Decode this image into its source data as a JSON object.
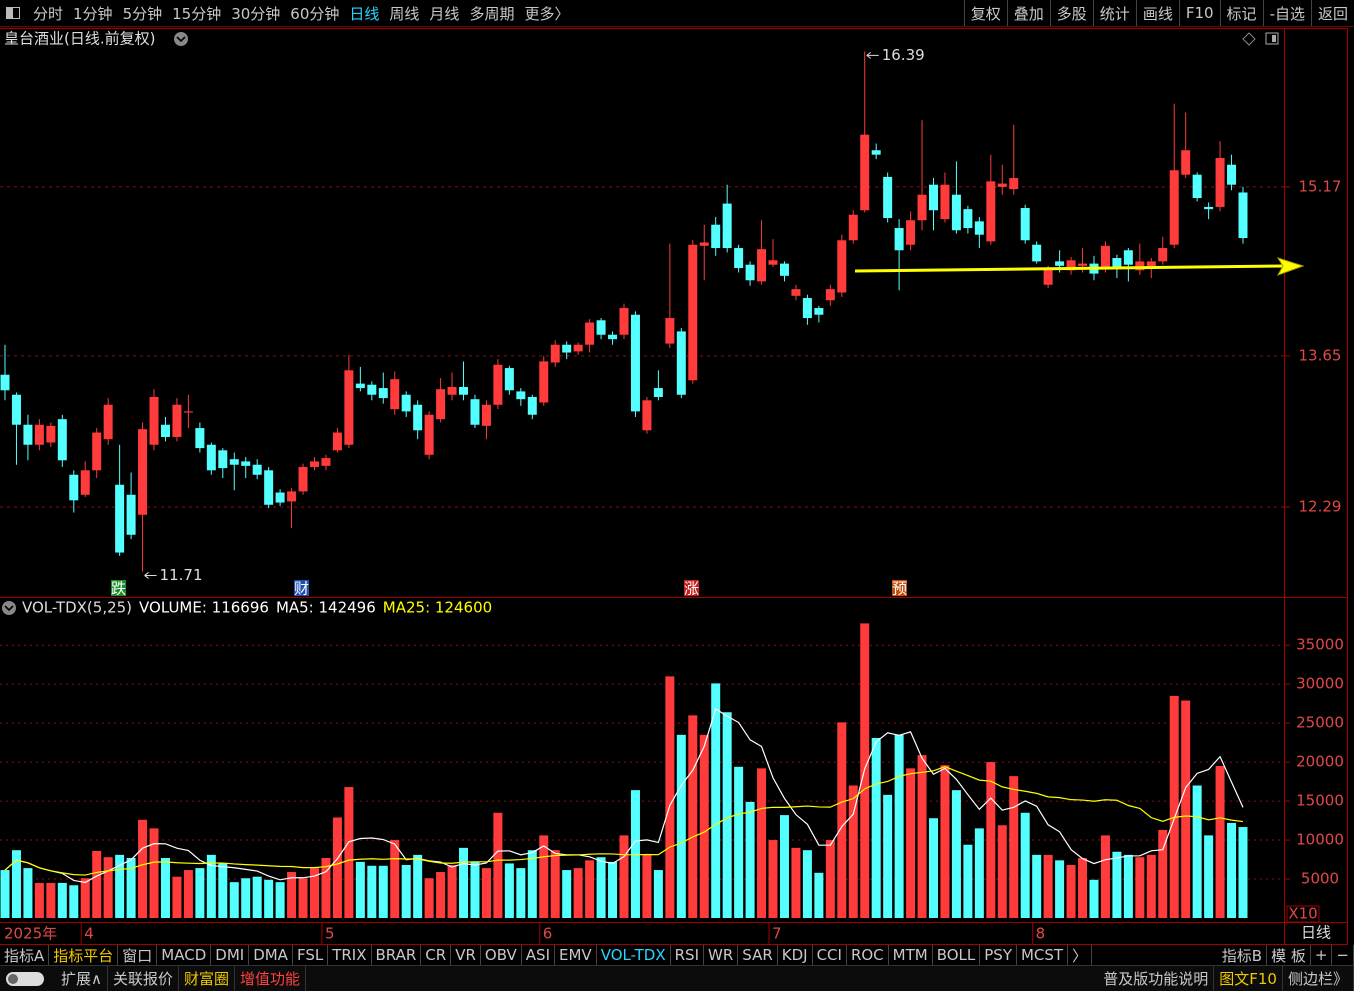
{
  "toolbar": {
    "periods": [
      {
        "label": "分时"
      },
      {
        "label": "1分钟"
      },
      {
        "label": "5分钟"
      },
      {
        "label": "15分钟"
      },
      {
        "label": "30分钟"
      },
      {
        "label": "60分钟"
      },
      {
        "label": "日线",
        "selected": true
      },
      {
        "label": "周线"
      },
      {
        "label": "月线"
      },
      {
        "label": "多周期"
      },
      {
        "label": "更多〉"
      }
    ],
    "tools": [
      "复权",
      "叠加",
      "多股",
      "统计",
      "画线",
      "F10",
      "标记",
      "-自选",
      "返回"
    ]
  },
  "stock_title": "皇台酒业(日线.前复权)",
  "event_markers": [
    "跌",
    "财",
    "涨",
    "预"
  ],
  "chart_data": [
    {
      "type": "candlestick",
      "up_color": "#ff3b3b",
      "down_color": "#54ffff",
      "ylim": [
        11.48,
        16.6
      ],
      "yticks": [
        12.29,
        13.65,
        15.17
      ],
      "grid": true,
      "open": [
        13.48,
        13.3,
        13.03,
        12.85,
        12.87,
        13.08,
        12.58,
        12.4,
        12.62,
        12.9,
        12.49,
        12.4,
        12.22,
        12.85,
        13.03,
        12.92,
        13.14,
        13.0,
        12.85,
        12.8,
        12.72,
        12.7,
        12.67,
        12.62,
        12.42,
        12.34,
        12.43,
        12.65,
        12.66,
        12.8,
        12.85,
        13.4,
        13.39,
        13.36,
        13.17,
        13.3,
        13.21,
        12.76,
        13.08,
        13.3,
        13.37,
        13.26,
        13.02,
        13.21,
        13.54,
        13.33,
        13.28,
        13.23,
        13.59,
        13.75,
        13.69,
        13.75,
        13.97,
        13.84,
        13.84,
        14.02,
        12.98,
        13.36,
        13.76,
        13.87,
        13.43,
        14.64,
        14.83,
        15.02,
        14.62,
        14.47,
        14.32,
        14.47,
        14.48,
        14.19,
        14.17,
        14.08,
        14.15,
        14.22,
        14.69,
        14.96,
        15.5,
        15.26,
        14.8,
        14.65,
        14.87,
        15.19,
        14.88,
        15.1,
        14.97,
        14.86,
        14.68,
        15.17,
        15.15,
        14.98,
        14.65,
        14.29,
        14.5,
        14.42,
        14.46,
        14.48,
        14.44,
        14.53,
        14.6,
        14.42,
        14.44,
        14.5,
        14.65,
        15.28,
        15.28,
        14.99,
        14.99,
        15.37,
        15.12
      ],
      "high": [
        13.75,
        13.32,
        13.12,
        13.08,
        13.05,
        13.12,
        12.62,
        12.7,
        13.0,
        13.27,
        12.85,
        12.6,
        13.05,
        13.35,
        13.1,
        13.27,
        13.3,
        13.05,
        12.87,
        12.82,
        12.78,
        12.74,
        12.72,
        12.65,
        12.45,
        12.46,
        12.68,
        12.74,
        12.76,
        13.0,
        13.66,
        13.55,
        13.42,
        13.5,
        13.51,
        13.33,
        13.25,
        13.15,
        13.45,
        13.5,
        13.6,
        13.3,
        13.25,
        13.62,
        13.56,
        13.36,
        13.3,
        13.65,
        13.79,
        13.78,
        13.77,
        13.98,
        13.99,
        13.87,
        14.12,
        14.05,
        13.28,
        13.52,
        14.66,
        13.9,
        14.69,
        14.83,
        14.9,
        15.19,
        14.65,
        14.5,
        14.87,
        14.7,
        14.5,
        14.29,
        14.2,
        14.1,
        14.29,
        14.74,
        14.96,
        16.39,
        15.56,
        15.3,
        14.88,
        14.95,
        15.77,
        15.25,
        15.3,
        15.4,
        15.0,
        14.9,
        15.46,
        15.37,
        15.73,
        15.01,
        14.68,
        14.46,
        14.6,
        14.54,
        14.62,
        14.55,
        14.68,
        14.56,
        14.62,
        14.66,
        14.53,
        14.72,
        15.92,
        15.84,
        15.3,
        15.03,
        15.58,
        15.46,
        15.17
      ],
      "low": [
        13.25,
        12.67,
        12.71,
        12.8,
        12.83,
        12.65,
        12.24,
        12.38,
        12.55,
        12.85,
        11.85,
        12.0,
        11.71,
        12.8,
        12.88,
        12.88,
        13.0,
        12.78,
        12.58,
        12.55,
        12.44,
        12.55,
        12.54,
        12.28,
        12.3,
        12.1,
        12.4,
        12.62,
        12.62,
        12.78,
        12.82,
        13.33,
        13.25,
        13.22,
        13.12,
        13.1,
        12.9,
        12.72,
        13.05,
        13.25,
        13.25,
        13.0,
        12.9,
        13.17,
        13.3,
        13.2,
        13.08,
        13.2,
        13.55,
        13.62,
        13.66,
        13.68,
        13.8,
        13.75,
        13.8,
        13.1,
        12.95,
        13.25,
        13.72,
        13.27,
        13.4,
        14.33,
        14.55,
        14.58,
        14.4,
        14.28,
        14.29,
        14.45,
        14.32,
        14.15,
        13.93,
        13.95,
        14.1,
        14.18,
        14.66,
        14.94,
        15.42,
        14.85,
        14.24,
        14.6,
        14.78,
        14.78,
        14.85,
        14.75,
        14.75,
        14.62,
        14.65,
        15.1,
        15.1,
        14.66,
        14.48,
        14.26,
        14.4,
        14.38,
        14.4,
        14.33,
        14.4,
        14.35,
        14.32,
        14.38,
        14.35,
        14.47,
        14.62,
        15.25,
        15.04,
        14.88,
        14.95,
        15.14,
        14.66
      ],
      "close": [
        13.34,
        13.03,
        12.85,
        13.03,
        13.02,
        12.71,
        12.35,
        12.62,
        12.96,
        13.21,
        11.88,
        12.04,
        12.99,
        13.28,
        12.92,
        13.21,
        13.15,
        12.82,
        12.62,
        12.64,
        12.67,
        12.66,
        12.58,
        12.31,
        12.33,
        12.43,
        12.65,
        12.7,
        12.73,
        12.96,
        13.52,
        13.36,
        13.3,
        13.27,
        13.44,
        13.15,
        12.98,
        13.12,
        13.35,
        13.37,
        13.3,
        13.03,
        13.21,
        13.57,
        13.34,
        13.26,
        13.12,
        13.6,
        13.75,
        13.68,
        13.75,
        13.95,
        13.84,
        13.8,
        14.08,
        13.15,
        13.25,
        13.28,
        13.99,
        13.3,
        14.65,
        14.67,
        14.62,
        14.62,
        14.44,
        14.33,
        14.61,
        14.51,
        14.37,
        14.25,
        13.99,
        14.02,
        14.25,
        14.69,
        14.92,
        15.64,
        15.46,
        14.89,
        14.6,
        14.87,
        15.1,
        14.96,
        15.19,
        14.78,
        14.8,
        14.74,
        15.22,
        15.2,
        15.25,
        14.69,
        14.5,
        14.43,
        14.46,
        14.51,
        14.48,
        14.39,
        14.64,
        14.44,
        14.47,
        14.5,
        14.5,
        14.62,
        15.32,
        15.5,
        15.07,
        14.97,
        15.43,
        15.19,
        14.71
      ]
    },
    {
      "type": "bar",
      "legend": [
        {
          "text": "VOL-TDX(5,25)",
          "color": "#dddddd"
        },
        {
          "text": "VOLUME: 116696",
          "color": "#ffffff"
        },
        {
          "text": "MA5: 142496",
          "color": "#ffffff"
        },
        {
          "text": "MA25: 124600",
          "color": "#ffff00"
        }
      ],
      "ma_periods": [
        5,
        25
      ],
      "ylim": [
        0,
        40800
      ],
      "yticks": [
        5000,
        10000,
        15000,
        20000,
        25000,
        30000,
        35000
      ],
      "grid": true,
      "scale_label": "X10",
      "year_label": "2025年",
      "period_label": "日线",
      "categories": [
        null,
        null,
        null,
        null,
        null,
        null,
        null,
        "4",
        null,
        null,
        null,
        null,
        null,
        null,
        null,
        null,
        null,
        null,
        null,
        null,
        null,
        null,
        null,
        null,
        null,
        null,
        null,
        null,
        "5",
        null,
        null,
        null,
        null,
        null,
        null,
        null,
        null,
        null,
        null,
        null,
        null,
        null,
        null,
        null,
        null,
        null,
        null,
        "6",
        null,
        null,
        null,
        null,
        null,
        null,
        null,
        null,
        null,
        null,
        null,
        null,
        null,
        null,
        null,
        null,
        null,
        null,
        null,
        "7",
        null,
        null,
        null,
        null,
        null,
        null,
        null,
        null,
        null,
        null,
        null,
        null,
        null,
        null,
        null,
        null,
        null,
        null,
        null,
        null,
        null,
        null,
        "8",
        null,
        null,
        null,
        null,
        null,
        null,
        null,
        null,
        null,
        null,
        null,
        null,
        null,
        null,
        null,
        null,
        null,
        null
      ],
      "values": [
        6150,
        8700,
        6400,
        4500,
        4500,
        4500,
        4200,
        5100,
        8600,
        7800,
        8100,
        7700,
        12600,
        11500,
        7700,
        5300,
        6150,
        6400,
        8100,
        7000,
        4600,
        5100,
        5300,
        4900,
        4600,
        5900,
        5100,
        6400,
        7700,
        12900,
        16800,
        7200,
        6700,
        6700,
        10000,
        6800,
        8100,
        5100,
        5900,
        6800,
        9000,
        7200,
        6400,
        13500,
        7000,
        6400,
        8700,
        10600,
        8700,
        6150,
        6400,
        7400,
        7800,
        7200,
        10600,
        16400,
        8100,
        6150,
        31000,
        23500,
        26000,
        23500,
        30100,
        26400,
        19400,
        14900,
        19200,
        10000,
        13200,
        9000,
        8700,
        5800,
        10000,
        25100,
        17000,
        37800,
        23100,
        15800,
        23500,
        19200,
        20900,
        12800,
        19600,
        16400,
        9400,
        11500,
        20000,
        11900,
        18200,
        13500,
        8100,
        8100,
        7400,
        6800,
        7700,
        4900,
        10600,
        8500,
        8100,
        7800,
        8100,
        11300,
        28500,
        27900,
        17000,
        10600,
        19500,
        12200,
        11670
      ]
    }
  ],
  "indicator_bar": {
    "left": [
      {
        "label": "指标A"
      },
      {
        "label": "指标平台",
        "color": "#f0c800"
      },
      {
        "label": "窗口"
      },
      {
        "label": "MACD"
      },
      {
        "label": "DMI"
      },
      {
        "label": "DMA"
      },
      {
        "label": "FSL"
      },
      {
        "label": "TRIX"
      },
      {
        "label": "BRAR"
      },
      {
        "label": "CR"
      },
      {
        "label": "VR"
      },
      {
        "label": "OBV"
      },
      {
        "label": "ASI"
      },
      {
        "label": "EMV"
      },
      {
        "label": "VOL-TDX",
        "color": "#2ad4ff"
      },
      {
        "label": "RSI"
      },
      {
        "label": "WR"
      },
      {
        "label": "SAR"
      },
      {
        "label": "KDJ"
      },
      {
        "label": "CCI"
      },
      {
        "label": "ROC"
      },
      {
        "label": "MTM"
      },
      {
        "label": "BOLL"
      },
      {
        "label": "PSY"
      },
      {
        "label": "MCST"
      },
      {
        "label": "〉"
      }
    ],
    "right": [
      {
        "label": "指标B"
      },
      {
        "label": "模 板"
      },
      {
        "label": "+"
      },
      {
        "label": "−"
      }
    ]
  },
  "status_bar": {
    "left": [
      {
        "label": "扩展∧"
      },
      {
        "label": "关联报价"
      },
      {
        "label": "财富圈",
        "color": "#f0c800"
      },
      {
        "label": "增值功能",
        "color": "#ff4040"
      }
    ],
    "right": [
      {
        "label": "普及版功能说明"
      },
      {
        "label": "图文F10",
        "color": "#f0c800"
      },
      {
        "label": "侧边栏》"
      }
    ]
  }
}
